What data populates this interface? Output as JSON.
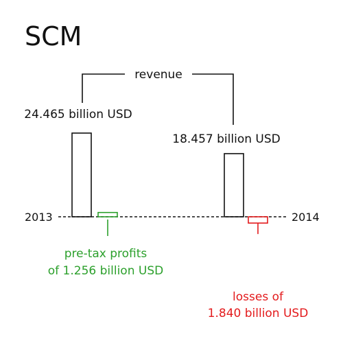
{
  "chart_data": {
    "type": "bar",
    "title": "SCM",
    "categories": [
      "2013",
      "2014"
    ],
    "group_label": "revenue",
    "series": [
      {
        "name": "revenue",
        "values": [
          24.465,
          18.457
        ],
        "labels": [
          "24.465 billion USD",
          "18.457 billion USD"
        ],
        "color": "#111111"
      },
      {
        "name": "pre-tax result",
        "values": [
          1.256,
          -1.84
        ],
        "label_lines": [
          [
            "pre-tax profits",
            "of 1.256 billion USD"
          ],
          [
            "losses of",
            "1.840 billion USD"
          ]
        ],
        "colors": [
          "#2ca02c",
          "#e31a1c"
        ]
      }
    ],
    "baseline": 0,
    "axis_style": "dashed",
    "grid": false,
    "legend": "none"
  }
}
